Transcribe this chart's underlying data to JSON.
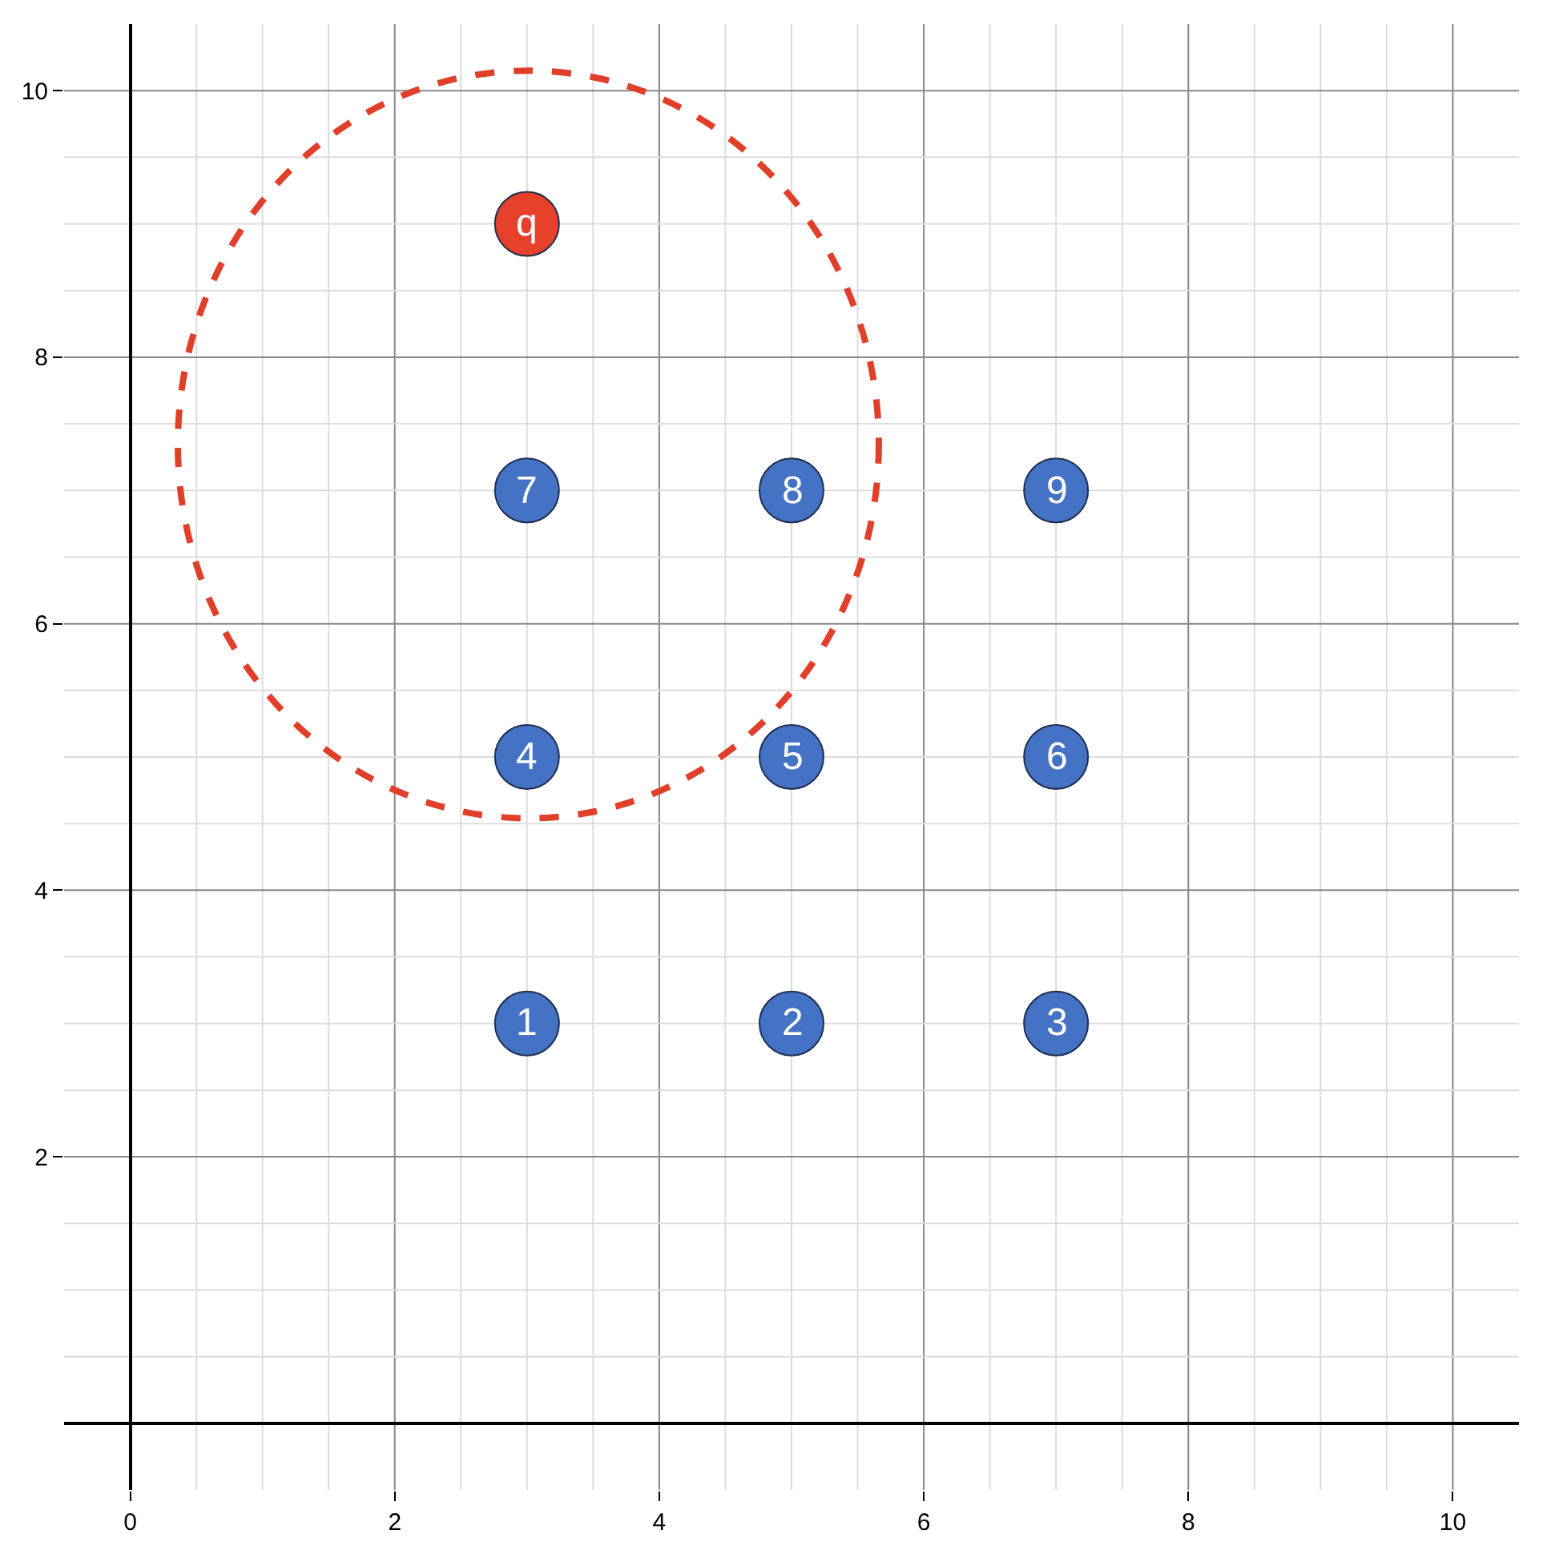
{
  "chart_data": {
    "type": "scatter",
    "xlim": [
      -0.5,
      10.5
    ],
    "ylim": [
      -0.5,
      10.5
    ],
    "xticks": [
      0,
      {
        "value": 0.5,
        "label": null
      },
      {
        "value": 1,
        "label": null
      },
      {
        "value": 1.5,
        "label": null
      },
      2,
      {
        "value": 2.5,
        "label": null
      },
      {
        "value": 3,
        "label": null
      },
      {
        "value": 3.5,
        "label": null
      },
      4,
      {
        "value": 4.5,
        "label": null
      },
      {
        "value": 5,
        "label": null
      },
      {
        "value": 5.5,
        "label": null
      },
      6,
      {
        "value": 6.5,
        "label": null
      },
      {
        "value": 7,
        "label": null
      },
      {
        "value": 7.5,
        "label": null
      },
      8,
      {
        "value": 8.5,
        "label": null
      },
      {
        "value": 9,
        "label": null
      },
      {
        "value": 9.5,
        "label": null
      },
      10
    ],
    "yticks": [
      {
        "value": 0,
        "label": null
      },
      {
        "value": 0.5,
        "label": null
      },
      {
        "value": 1,
        "label": null
      },
      {
        "value": 1.5,
        "label": null
      },
      2,
      {
        "value": 2.5,
        "label": null
      },
      {
        "value": 3,
        "label": null
      },
      {
        "value": 3.5,
        "label": null
      },
      4,
      {
        "value": 4.5,
        "label": null
      },
      {
        "value": 5,
        "label": null
      },
      {
        "value": 5.5,
        "label": null
      },
      6,
      {
        "value": 6.5,
        "label": null
      },
      {
        "value": 7,
        "label": null
      },
      {
        "value": 7.5,
        "label": null
      },
      8,
      {
        "value": 8.5,
        "label": null
      },
      {
        "value": 9,
        "label": null
      },
      {
        "value": 9.5,
        "label": null
      },
      10
    ],
    "grid": true,
    "annotations": [
      {
        "text": "1",
        "x": 3,
        "y": 3
      },
      {
        "text": "2",
        "x": 5,
        "y": 3
      },
      {
        "text": "3",
        "x": 7,
        "y": 3
      },
      {
        "text": "4",
        "x": 3,
        "y": 5
      },
      {
        "text": "5",
        "x": 5,
        "y": 5
      },
      {
        "text": "6",
        "x": 7,
        "y": 5
      },
      {
        "text": "7",
        "x": 3,
        "y": 7
      },
      {
        "text": "8",
        "x": 5,
        "y": 7
      },
      {
        "text": "9",
        "x": 7,
        "y": 7
      },
      {
        "text": "q",
        "x": 3,
        "y": 9
      }
    ],
    "series": [
      {
        "marker": "circle",
        "x": [
          3,
          5,
          7,
          3,
          5,
          7,
          3,
          5,
          7,
          3
        ],
        "values": [
          3,
          3,
          3,
          5,
          5,
          5,
          7,
          7,
          7,
          9
        ],
        "colors": [
          "#4472c4",
          "#4472c4",
          "#4472c4",
          "#4472c4",
          "#4472c4",
          "#4472c4",
          "#4472c4",
          "#4472c4",
          "#4472c4",
          "#e8412b"
        ]
      }
    ]
  }
}
